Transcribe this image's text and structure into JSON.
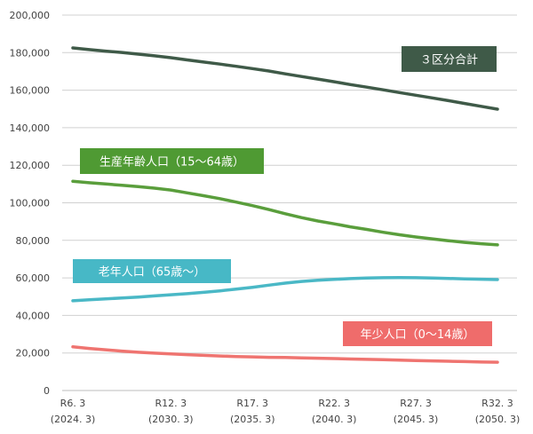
{
  "chart_data": {
    "type": "line",
    "title": "",
    "xlabel": "",
    "ylabel": "",
    "ylim": [
      0,
      200000
    ],
    "yticks": [
      0,
      20000,
      40000,
      60000,
      80000,
      100000,
      120000,
      140000,
      160000,
      180000,
      200000
    ],
    "ytick_labels": [
      "0",
      "20,000",
      "40,000",
      "60,000",
      "80,000",
      "100,000",
      "120,000",
      "140,000",
      "160,000",
      "180,000",
      "200,000"
    ],
    "x": [
      2024,
      2025,
      2026,
      2027,
      2028,
      2029,
      2030,
      2031,
      2032,
      2033,
      2034,
      2035,
      2036,
      2037,
      2038,
      2039,
      2040,
      2041,
      2042,
      2043,
      2044,
      2045,
      2046,
      2047,
      2048,
      2049,
      2050
    ],
    "xticks": [
      {
        "x": 2024,
        "label1": "R6. 3",
        "label2": "(2024. 3)"
      },
      {
        "x": 2030,
        "label1": "R12. 3",
        "label2": "(2030. 3)"
      },
      {
        "x": 2035,
        "label1": "R17. 3",
        "label2": "(2035. 3)"
      },
      {
        "x": 2040,
        "label1": "R22. 3",
        "label2": "(2040. 3)"
      },
      {
        "x": 2045,
        "label1": "R27. 3",
        "label2": "(2045. 3)"
      },
      {
        "x": 2050,
        "label1": "R32. 3",
        "label2": "(2050. 3)"
      }
    ],
    "grid": true,
    "series": [
      {
        "name": "３区分合計",
        "color": "#3f5a48",
        "label_color": "#3f5a48",
        "values": [
          182500,
          181600,
          180800,
          180100,
          179200,
          178300,
          177300,
          176100,
          175000,
          173900,
          172700,
          171500,
          170200,
          168700,
          167300,
          165900,
          164500,
          163000,
          161600,
          160200,
          158700,
          157300,
          155900,
          154400,
          152900,
          151400,
          149900
        ]
      },
      {
        "name": "生産年齢人口（15～64歳）",
        "color": "#5a9e3c",
        "label_color": "#4f9a33",
        "values": [
          111500,
          110700,
          110000,
          109300,
          108600,
          107800,
          106800,
          105300,
          103800,
          102200,
          100400,
          98500,
          96400,
          94200,
          92100,
          90300,
          88800,
          87200,
          85800,
          84300,
          83000,
          81800,
          80800,
          79800,
          78900,
          78200,
          77600
        ]
      },
      {
        "name": "老年人口（65歳～）",
        "color": "#4ab8c6",
        "label_color": "#47b8c6",
        "values": [
          47800,
          48300,
          48800,
          49300,
          49800,
          50400,
          51000,
          51600,
          52300,
          53100,
          54000,
          55000,
          56100,
          57200,
          58100,
          58700,
          59200,
          59600,
          59900,
          60100,
          60200,
          60100,
          59900,
          59700,
          59500,
          59300,
          59100
        ]
      },
      {
        "name": "年少人口（0～14歳）",
        "color": "#ef7470",
        "label_color": "#ef6c6b",
        "values": [
          23300,
          22400,
          21700,
          21000,
          20400,
          19900,
          19500,
          19100,
          18700,
          18400,
          18100,
          17900,
          17700,
          17600,
          17400,
          17200,
          17000,
          16800,
          16600,
          16400,
          16200,
          16000,
          15800,
          15600,
          15400,
          15200,
          15100
        ]
      }
    ]
  }
}
